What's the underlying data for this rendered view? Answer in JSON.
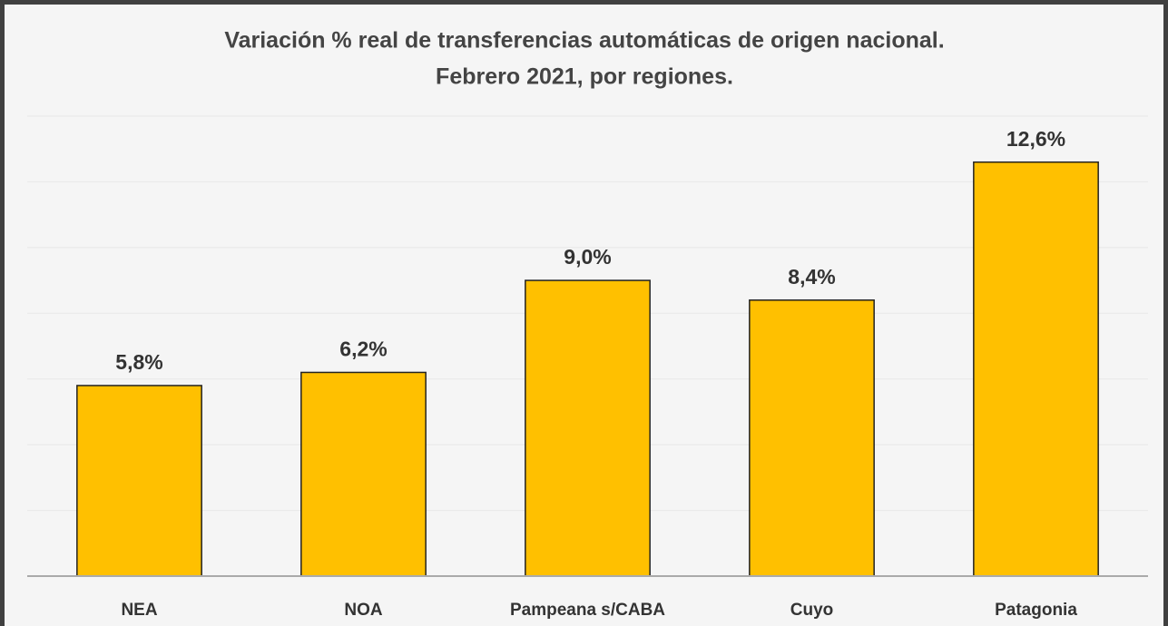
{
  "chart_data": {
    "type": "bar",
    "title": [
      "Variación % real de transferencias automáticas de origen nacional.",
      "Febrero 2021, por regiones."
    ],
    "categories": [
      "NEA",
      "NOA",
      "Pampeana s/CABA",
      "Cuyo",
      "Patagonia"
    ],
    "values": [
      5.8,
      6.2,
      9.0,
      8.4,
      12.6
    ],
    "value_labels": [
      "5,8%",
      "6,2%",
      "9,0%",
      "8,4%",
      "12,6%"
    ],
    "color": "#ffc000",
    "ylim": [
      0,
      14
    ],
    "yticks": [
      0,
      2,
      4,
      6,
      8,
      10,
      12,
      14
    ],
    "grid": true
  }
}
